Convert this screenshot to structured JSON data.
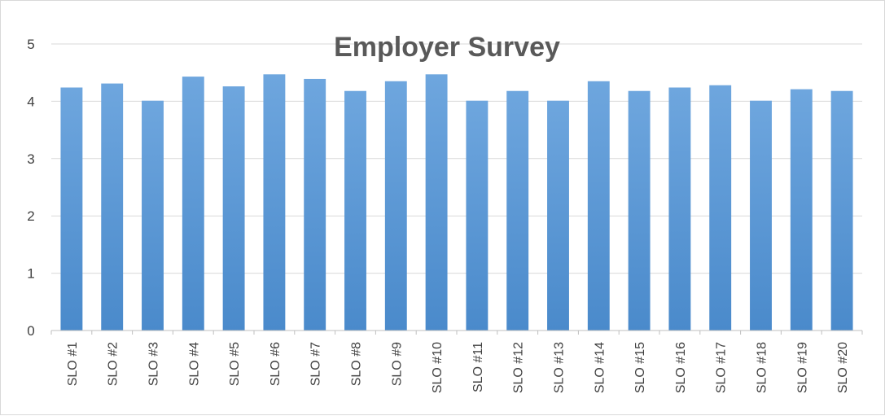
{
  "chart_data": {
    "type": "bar",
    "title": "Employer Survey",
    "xlabel": "",
    "ylabel": "",
    "ylim": [
      0,
      5
    ],
    "yticks": [
      0,
      1,
      2,
      3,
      4,
      5
    ],
    "grid": true,
    "legend": "none",
    "bar_color": "#5b9bd5",
    "categories": [
      "SLO #1",
      "SLO #2",
      "SLO #3",
      "SLO #4",
      "SLO #5",
      "SLO #6",
      "SLO #7",
      "SLO #8",
      "SLO #9",
      "SLO #10",
      "SLO #11",
      "SLO #12",
      "SLO #13",
      "SLO #14",
      "SLO #15",
      "SLO #16",
      "SLO #17",
      "SLO #18",
      "SLO #19",
      "SLO #20"
    ],
    "values": [
      4.24,
      4.31,
      4.01,
      4.43,
      4.26,
      4.47,
      4.39,
      4.18,
      4.35,
      4.47,
      4.01,
      4.18,
      4.01,
      4.35,
      4.18,
      4.24,
      4.28,
      4.01,
      4.21,
      4.18
    ]
  }
}
